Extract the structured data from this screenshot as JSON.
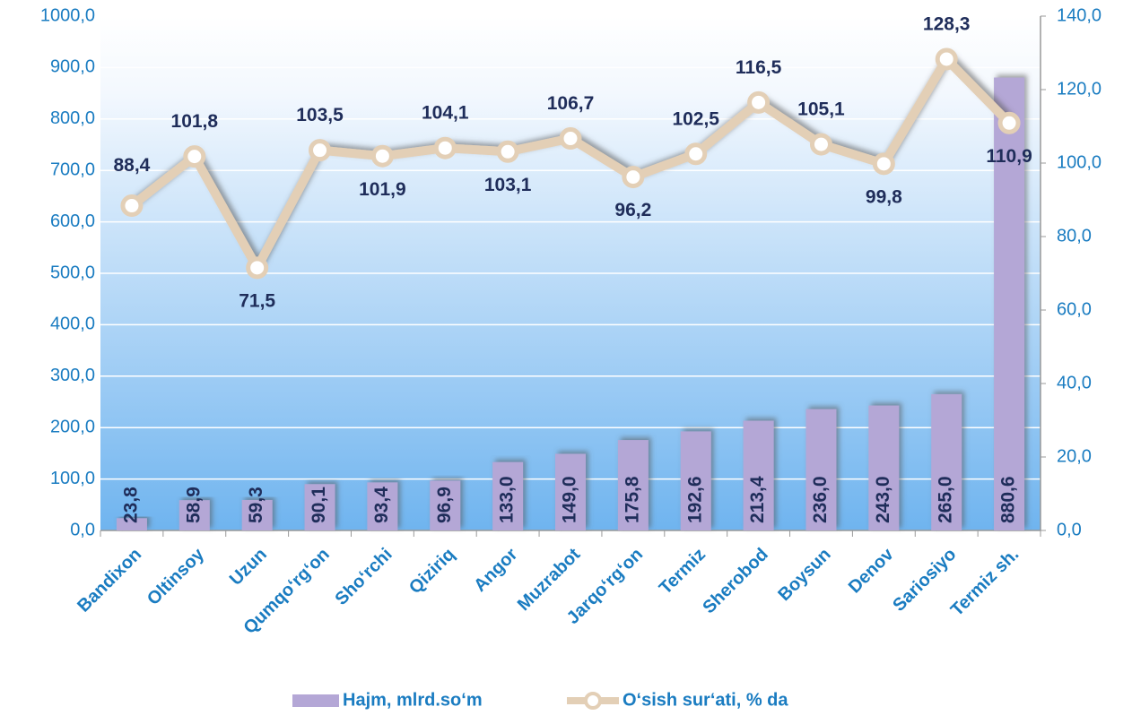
{
  "chart_data": {
    "type": "combo",
    "categories": [
      "Bandixon",
      "Oltinsoy",
      "Uzun",
      "Qumqo‘rg‘on",
      "Sho‘rchi",
      "Qiziriq",
      "Angor",
      "Muzrabot",
      "Jarqo‘rg‘on",
      "Termiz",
      "Sherobod",
      "Boysun",
      "Denov",
      "Sariosiyo",
      "Termiz sh."
    ],
    "series": [
      {
        "name": "Hajm, mlrd.so‘m",
        "type": "bar",
        "color": "#b4a7d6",
        "values": [
          23.8,
          58.9,
          59.3,
          90.1,
          93.4,
          96.9,
          133.0,
          149.0,
          175.8,
          192.6,
          213.4,
          236.0,
          243.0,
          265.0,
          880.6
        ],
        "value_labels": [
          "23,8",
          "58,9",
          "59,3",
          "90,1",
          "93,4",
          "96,9",
          "133,0",
          "149,0",
          "175,8",
          "192,6",
          "213,4",
          "236,0",
          "243,0",
          "265,0",
          "880,6"
        ]
      },
      {
        "name": "O‘sish sur‘ati, % da",
        "type": "line",
        "axis": "y2",
        "color": "#e3cfb6",
        "values": [
          88.4,
          101.8,
          71.5,
          103.5,
          101.9,
          104.1,
          103.1,
          106.7,
          96.2,
          102.5,
          116.5,
          105.1,
          99.8,
          128.3,
          110.9
        ],
        "value_labels": [
          "88,4",
          "101,8",
          "71,5",
          "103,5",
          "101,9",
          "104,1",
          "103,1",
          "106,7",
          "96,2",
          "102,5",
          "116,5",
          "105,1",
          "99,8",
          "128,3",
          "110,9"
        ]
      }
    ],
    "ylim": [
      0,
      1000
    ],
    "yticks": [
      {
        "value": 0,
        "label": "0,0"
      },
      {
        "value": 100,
        "label": "100,0"
      },
      {
        "value": 200,
        "label": "200,0"
      },
      {
        "value": 300,
        "label": "300,0"
      },
      {
        "value": 400,
        "label": "400,0"
      },
      {
        "value": 500,
        "label": "500,0"
      },
      {
        "value": 600,
        "label": "600,0"
      },
      {
        "value": 700,
        "label": "700,0"
      },
      {
        "value": 800,
        "label": "800,0"
      },
      {
        "value": 900,
        "label": "900,0"
      },
      {
        "value": 1000,
        "label": "1000,0"
      }
    ],
    "y2lim": [
      0,
      140
    ],
    "y2ticks": [
      {
        "value": 0,
        "label": "0,0"
      },
      {
        "value": 20,
        "label": "20,0"
      },
      {
        "value": 40,
        "label": "40,0"
      },
      {
        "value": 60,
        "label": "60,0"
      },
      {
        "value": 80,
        "label": "80,0"
      },
      {
        "value": 100,
        "label": "100,0"
      },
      {
        "value": 120,
        "label": "120,0"
      },
      {
        "value": 140,
        "label": "140,0"
      }
    ],
    "grid": true,
    "legend": "bottom"
  }
}
